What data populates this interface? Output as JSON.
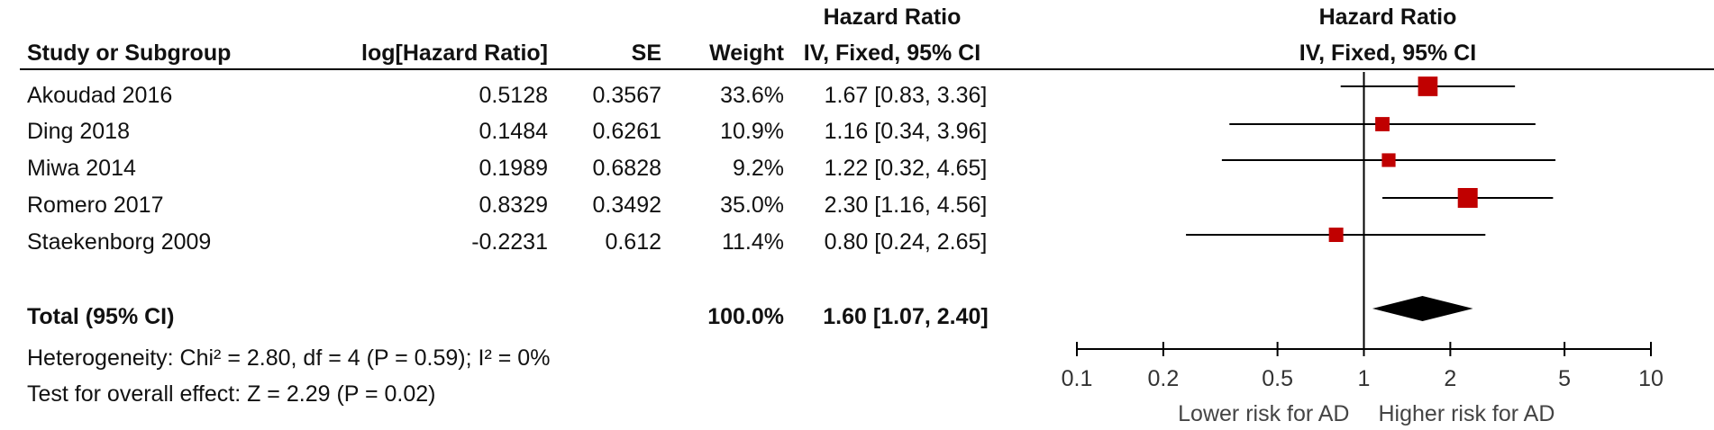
{
  "headers": {
    "study": "Study or Subgroup",
    "log_hr": "log[Hazard Ratio]",
    "se": "SE",
    "weight": "Weight",
    "hr_title": "Hazard Ratio",
    "hr_method": "IV, Fixed, 95% CI",
    "plot_title": "Hazard Ratio",
    "plot_method": "IV, Fixed, 95% CI"
  },
  "studies": [
    {
      "name": "Akoudad 2016",
      "log_hr": "0.5128",
      "se": "0.3567",
      "weight": "33.6%",
      "ci_text": "1.67 [0.83, 3.36]"
    },
    {
      "name": "Ding 2018",
      "log_hr": "0.1484",
      "se": "0.6261",
      "weight": "10.9%",
      "ci_text": "1.16 [0.34, 3.96]"
    },
    {
      "name": "Miwa 2014",
      "log_hr": "0.1989",
      "se": "0.6828",
      "weight": "9.2%",
      "ci_text": "1.22 [0.32, 4.65]"
    },
    {
      "name": "Romero 2017",
      "log_hr": "0.8329",
      "se": "0.3492",
      "weight": "35.0%",
      "ci_text": "2.30 [1.16, 4.56]"
    },
    {
      "name": "Staekenborg 2009",
      "log_hr": "-0.2231",
      "se": "0.612",
      "weight": "11.4%",
      "ci_text": "0.80 [0.24, 2.65]"
    }
  ],
  "total": {
    "label": "Total (95% CI)",
    "weight": "100.0%",
    "ci_text": "1.60 [1.07, 2.40]"
  },
  "heterogeneity": "Heterogeneity: Chi² = 2.80, df = 4 (P = 0.59); I² = 0%",
  "overall_effect": "Test for overall effect: Z = 2.29 (P = 0.02)",
  "colors": {
    "marker": "#c00000",
    "diamond": "#000000",
    "line": "#000000"
  },
  "chart_data": {
    "type": "forest",
    "x_scale": "log",
    "xlim": [
      0.1,
      10
    ],
    "x_ticks": [
      "0.1",
      "0.2",
      "0.5",
      "1",
      "2",
      "5",
      "10"
    ],
    "x_tick_values": [
      0.1,
      0.2,
      0.5,
      1,
      2,
      5,
      10
    ],
    "null_line": 1,
    "left_label": "Lower risk for AD",
    "right_label": "Higher risk for AD",
    "points": [
      {
        "study": "Akoudad 2016",
        "hr": 1.67,
        "lower": 0.83,
        "upper": 3.36,
        "weight": 33.6
      },
      {
        "study": "Ding 2018",
        "hr": 1.16,
        "lower": 0.34,
        "upper": 3.96,
        "weight": 10.9
      },
      {
        "study": "Miwa 2014",
        "hr": 1.22,
        "lower": 0.32,
        "upper": 4.65,
        "weight": 9.2
      },
      {
        "study": "Romero 2017",
        "hr": 2.3,
        "lower": 1.16,
        "upper": 4.56,
        "weight": 35.0
      },
      {
        "study": "Staekenborg 2009",
        "hr": 0.8,
        "lower": 0.24,
        "upper": 2.65,
        "weight": 11.4
      }
    ],
    "pooled": {
      "hr": 1.6,
      "lower": 1.07,
      "upper": 2.4
    }
  }
}
